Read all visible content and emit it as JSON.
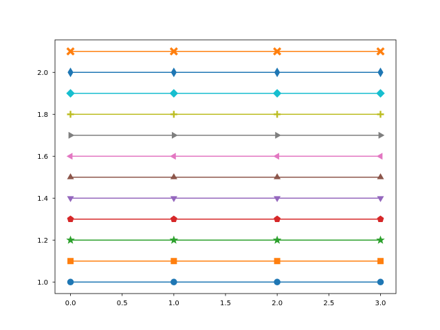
{
  "chart_data": {
    "type": "line",
    "title": "",
    "xlabel": "",
    "ylabel": "",
    "x": [
      0,
      1,
      2,
      3
    ],
    "xlim": [
      -0.15,
      3.15
    ],
    "ylim": [
      0.945,
      2.155
    ],
    "x_ticks": [
      0.0,
      0.5,
      1.0,
      1.5,
      2.0,
      2.5,
      3.0
    ],
    "x_tick_labels": [
      "0.0",
      "0.5",
      "1.0",
      "1.5",
      "2.0",
      "2.5",
      "3.0"
    ],
    "y_ticks": [
      1.0,
      1.2,
      1.4,
      1.6,
      1.8,
      2.0
    ],
    "y_tick_labels": [
      "1.0",
      "1.2",
      "1.4",
      "1.6",
      "1.8",
      "2.0"
    ],
    "grid": false,
    "legend": "none",
    "series": [
      {
        "values": [
          1.0,
          1.0,
          1.0,
          1.0
        ],
        "color": "#1f77b4",
        "marker": "circle"
      },
      {
        "values": [
          1.1,
          1.1,
          1.1,
          1.1
        ],
        "color": "#ff7f0e",
        "marker": "square"
      },
      {
        "values": [
          1.2,
          1.2,
          1.2,
          1.2
        ],
        "color": "#2ca02c",
        "marker": "star"
      },
      {
        "values": [
          1.3,
          1.3,
          1.3,
          1.3
        ],
        "color": "#d62728",
        "marker": "pentagon"
      },
      {
        "values": [
          1.4,
          1.4,
          1.4,
          1.4
        ],
        "color": "#9467bd",
        "marker": "triangle-down"
      },
      {
        "values": [
          1.5,
          1.5,
          1.5,
          1.5
        ],
        "color": "#8c564b",
        "marker": "triangle-up"
      },
      {
        "values": [
          1.6,
          1.6,
          1.6,
          1.6
        ],
        "color": "#e377c2",
        "marker": "triangle-left"
      },
      {
        "values": [
          1.7,
          1.7,
          1.7,
          1.7
        ],
        "color": "#7f7f7f",
        "marker": "triangle-right"
      },
      {
        "values": [
          1.8,
          1.8,
          1.8,
          1.8
        ],
        "color": "#bcbd22",
        "marker": "plus"
      },
      {
        "values": [
          1.9,
          1.9,
          1.9,
          1.9
        ],
        "color": "#17becf",
        "marker": "diamond"
      },
      {
        "values": [
          2.0,
          2.0,
          2.0,
          2.0
        ],
        "color": "#1f77b4",
        "marker": "thin-diamond"
      },
      {
        "values": [
          2.1,
          2.1,
          2.1,
          2.1
        ],
        "color": "#ff7f0e",
        "marker": "x"
      }
    ]
  }
}
